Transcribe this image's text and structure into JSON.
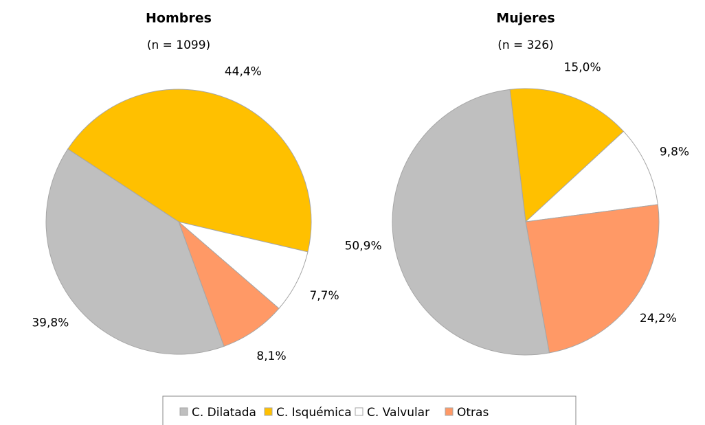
{
  "chart_data": [
    {
      "type": "pie",
      "title": "Hombres",
      "subtitle": "(n = 1099)",
      "categories": [
        "C. Dilatada",
        "C. Isquémica",
        "C. Valvular",
        "Otras"
      ],
      "values": [
        39.8,
        44.4,
        7.7,
        8.1
      ],
      "value_labels": [
        "39,8%",
        "44,4%",
        "7,7%",
        "8,1%"
      ],
      "colors": [
        "#bfbfbf",
        "#ffc000",
        "#ffffff",
        "#ff9966"
      ]
    },
    {
      "type": "pie",
      "title": "Mujeres",
      "subtitle": "(n = 326)",
      "categories": [
        "C. Dilatada",
        "C. Isquémica",
        "C. Valvular",
        "Otras"
      ],
      "values": [
        50.9,
        15.0,
        9.8,
        24.2
      ],
      "value_labels": [
        "50,9%",
        "15,0%",
        "9,8%",
        "24,2%"
      ],
      "colors": [
        "#bfbfbf",
        "#ffc000",
        "#ffffff",
        "#ff9966"
      ]
    }
  ]
}
